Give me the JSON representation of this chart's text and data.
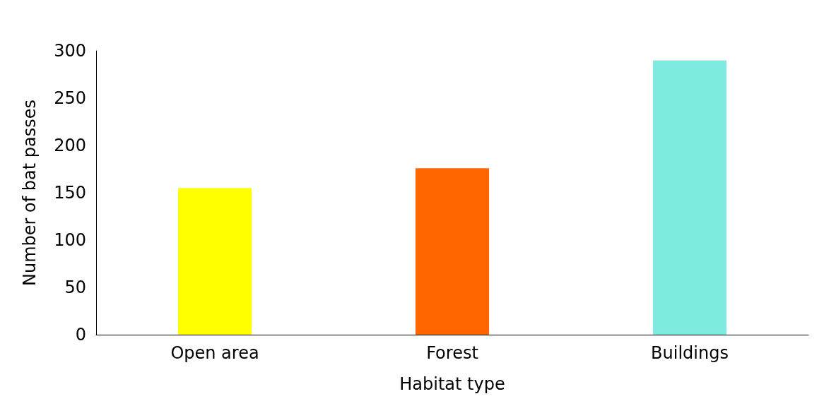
{
  "chart_data": {
    "type": "bar",
    "xlabel": "Habitat type",
    "ylabel": "Number of bat passes",
    "categories": [
      "Open area",
      "Forest",
      "Buildings"
    ],
    "values": [
      155,
      176,
      290
    ],
    "colors": [
      "#ffff00",
      "#ff6600",
      "#7eeae0"
    ],
    "ylim": [
      0,
      300
    ],
    "yticks": [
      0,
      50,
      100,
      150,
      200,
      250,
      300
    ],
    "grid": false
  }
}
